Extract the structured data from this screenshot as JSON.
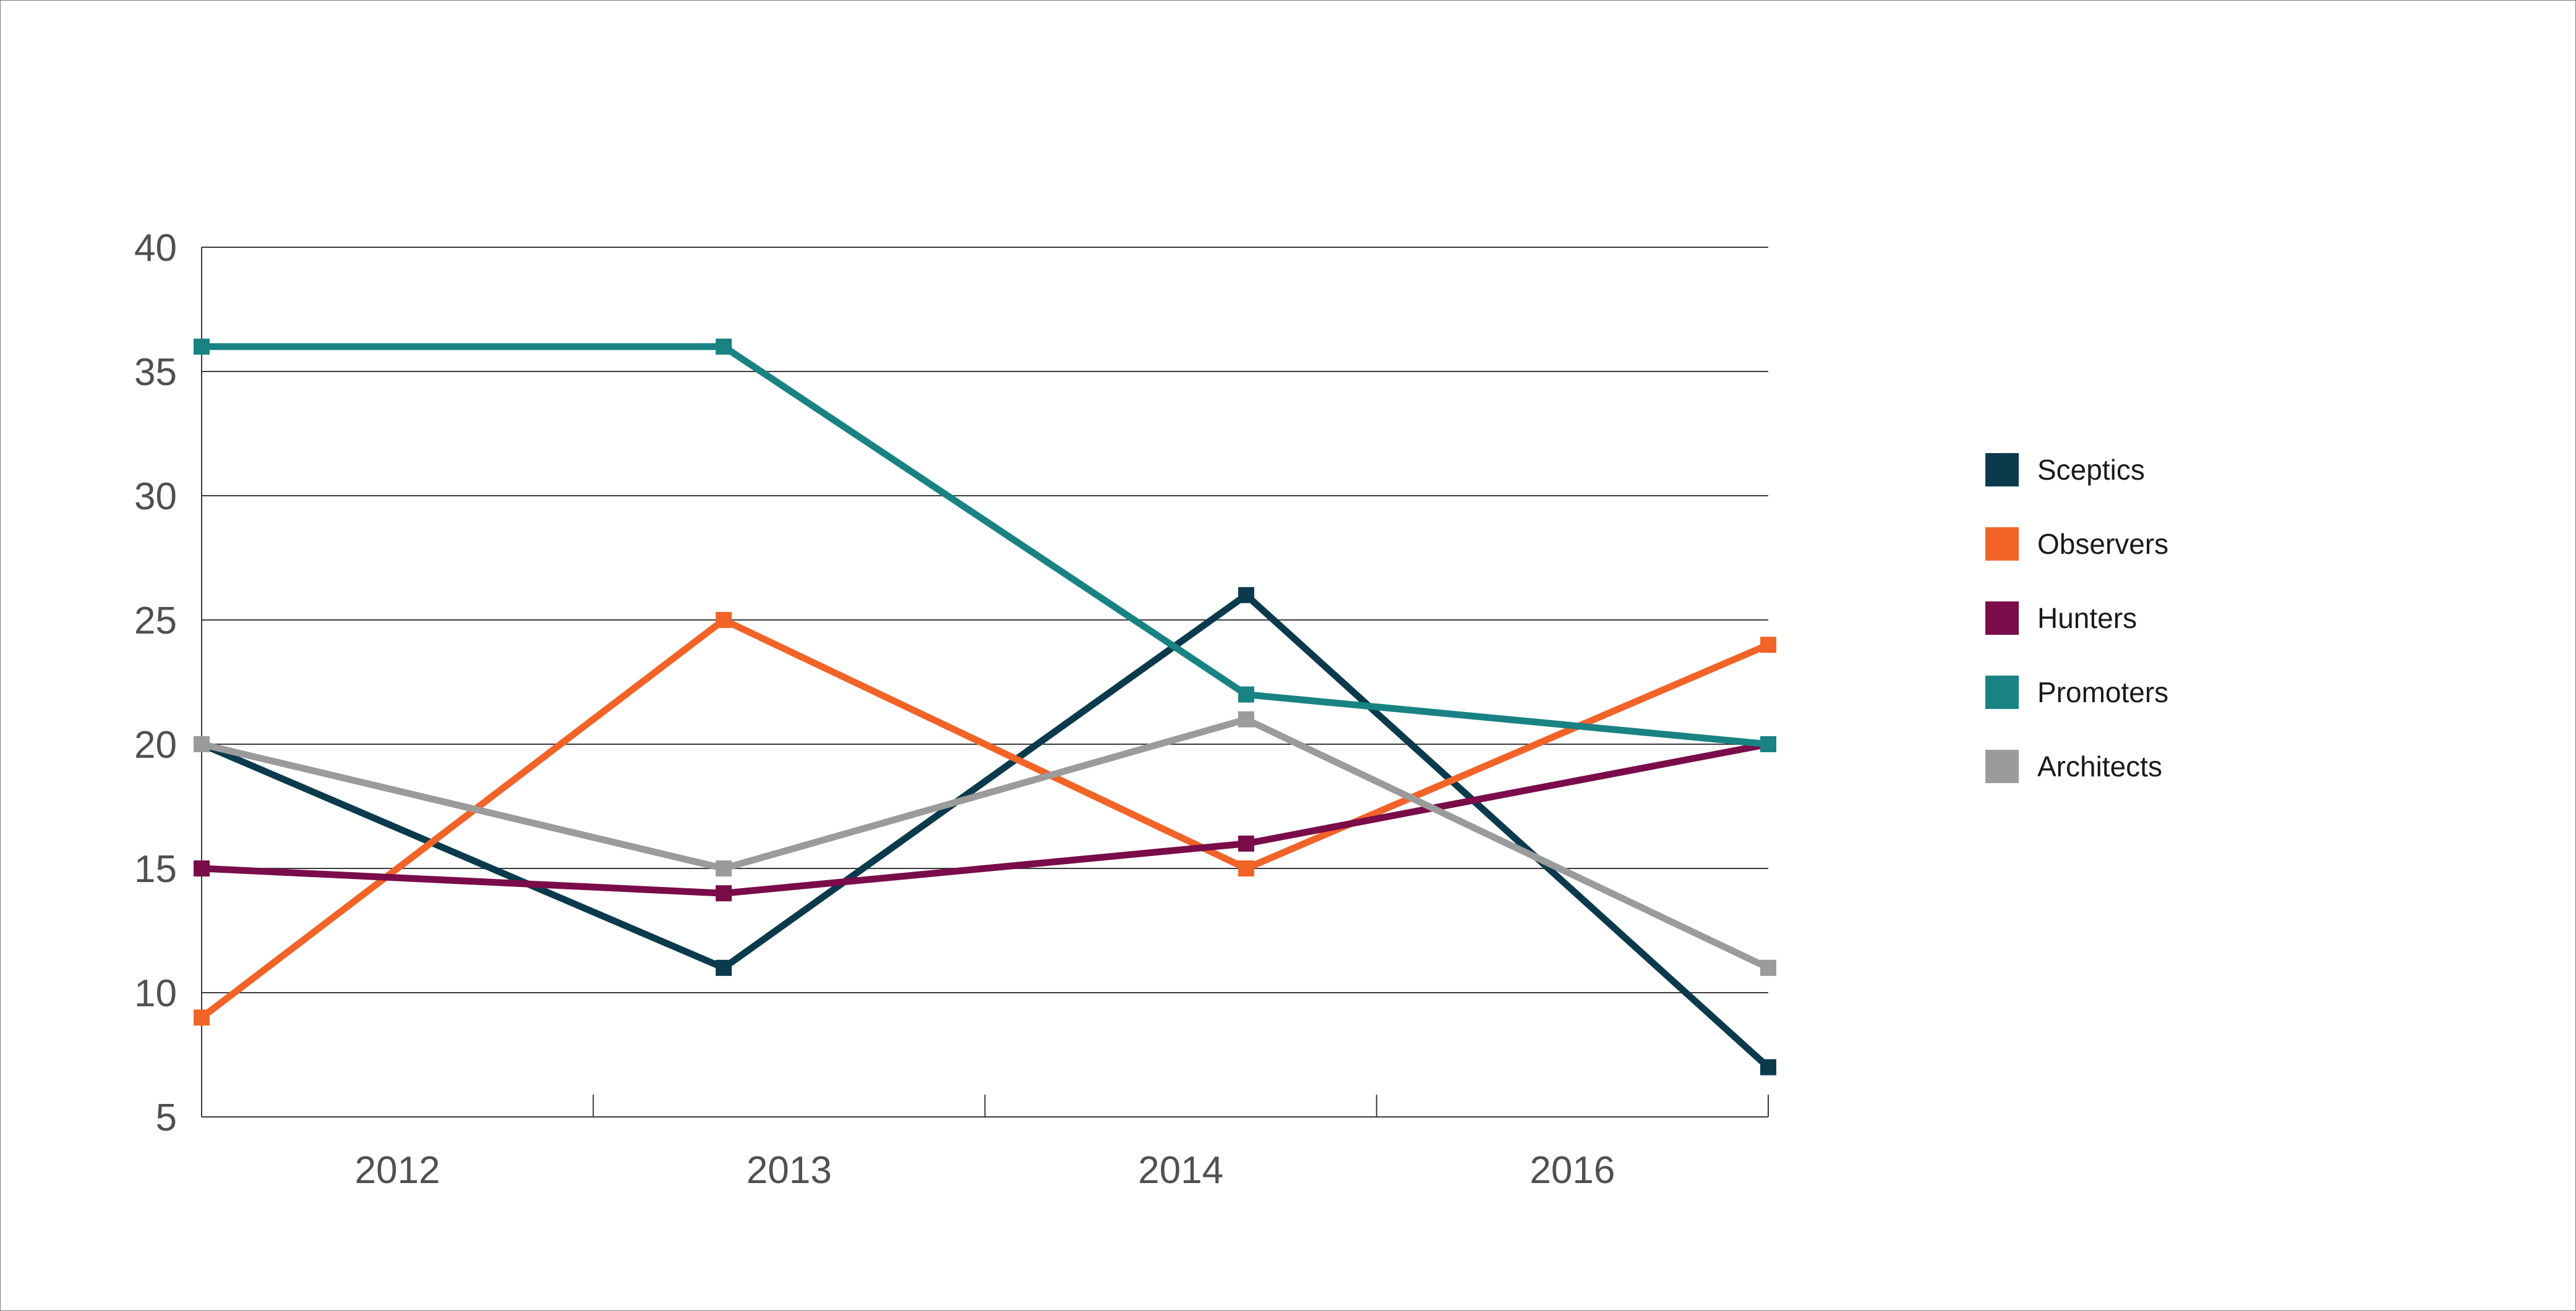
{
  "chart_data": {
    "type": "line",
    "title": "",
    "xlabel": "",
    "ylabel": "",
    "categories": [
      "2012",
      "2013",
      "2014",
      "2016"
    ],
    "ylim": [
      5,
      40
    ],
    "yticks": [
      5,
      10,
      15,
      20,
      25,
      30,
      35,
      40
    ],
    "grid": true,
    "legend_position": "right",
    "marker": "square",
    "series": [
      {
        "name": "Sceptics",
        "color": "#0c3a4d",
        "x": [
          0,
          1.333,
          2.667,
          4
        ],
        "values": [
          20,
          11,
          26,
          7
        ]
      },
      {
        "name": "Observers",
        "color": "#f26328",
        "x": [
          0,
          1.333,
          2.667,
          4
        ],
        "values": [
          9,
          25,
          15,
          24
        ]
      },
      {
        "name": "Hunters",
        "color": "#7a0c4a",
        "x": [
          0,
          1.333,
          2.667,
          4
        ],
        "values": [
          15,
          14,
          16,
          20
        ]
      },
      {
        "name": "Promoters",
        "color": "#198283",
        "x": [
          0,
          1.333,
          2.667,
          4
        ],
        "values": [
          36,
          36,
          22,
          20
        ]
      },
      {
        "name": "Architects",
        "color": "#9b9b9b",
        "x": [
          0,
          1.333,
          2.667,
          4
        ],
        "values": [
          20,
          15,
          21,
          11
        ]
      }
    ]
  }
}
